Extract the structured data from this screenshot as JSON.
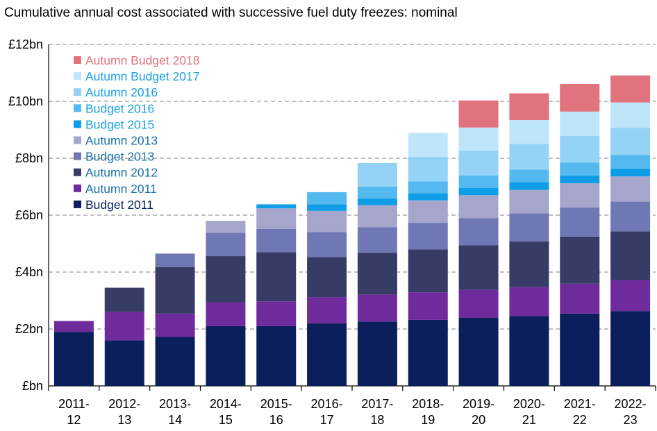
{
  "title": "Cumulative annual  cost associated with successive fuel duty freezes: nominal",
  "chart_data": {
    "type": "bar",
    "stacked": true,
    "title": "Cumulative annual  cost associated with successive fuel duty freezes: nominal",
    "xlabel": "",
    "ylabel": "",
    "ylim": [
      0,
      12
    ],
    "yticks": [
      "£bn",
      "£2bn",
      "£4bn",
      "£6bn",
      "£8bn",
      "£10bn",
      "£12bn"
    ],
    "grid": "horizontal dashed",
    "legend_position": "top-left",
    "categories": [
      [
        "2011-",
        "12"
      ],
      [
        "2012-",
        "13"
      ],
      [
        "2013-",
        "14"
      ],
      [
        "2014-",
        "15"
      ],
      [
        "2015-",
        "16"
      ],
      [
        "2016-",
        "17"
      ],
      [
        "2017-",
        "18"
      ],
      [
        "2018-",
        "19"
      ],
      [
        "2019-",
        "20"
      ],
      [
        "2020-",
        "21"
      ],
      [
        "2021-",
        "22"
      ],
      [
        "2022-",
        "23"
      ]
    ],
    "series": [
      {
        "name": "Budget 2011",
        "color": "#0a1f5c",
        "legend_text_color": "#0a1f5c",
        "values": [
          1.9,
          1.6,
          1.72,
          2.1,
          2.1,
          2.2,
          2.26,
          2.32,
          2.4,
          2.46,
          2.54,
          2.63
        ]
      },
      {
        "name": "Autumn 2011",
        "color": "#6f2b9c",
        "legend_text_color": "#1a6fa8",
        "values": [
          0.38,
          1.0,
          0.82,
          0.84,
          0.87,
          0.92,
          0.95,
          0.97,
          0.98,
          1.01,
          1.05,
          1.09
        ]
      },
      {
        "name": "Autumn 2012",
        "color": "#373c66",
        "legend_text_color": "#1a6fa8",
        "values": [
          0,
          0.85,
          1.63,
          1.62,
          1.73,
          1.41,
          1.47,
          1.51,
          1.56,
          1.61,
          1.66,
          1.71
        ]
      },
      {
        "name": "Budget 2013",
        "color": "#6f78b4",
        "legend_text_color": "#1a6fa8",
        "values": [
          0,
          0,
          0.48,
          0.82,
          0.82,
          0.88,
          0.9,
          0.93,
          0.95,
          0.98,
          1.02,
          1.05
        ]
      },
      {
        "name": "Autumn 2013",
        "color": "#a6a6cc",
        "legend_text_color": "#1a6fa8",
        "values": [
          0,
          0,
          0,
          0.42,
          0.72,
          0.74,
          0.77,
          0.79,
          0.81,
          0.83,
          0.85,
          0.88
        ]
      },
      {
        "name": "Budget 2015",
        "color": "#0f9de8",
        "legend_text_color": "#1aa0e0",
        "values": [
          0,
          0,
          0,
          0,
          0.14,
          0.23,
          0.24,
          0.25,
          0.26,
          0.27,
          0.27,
          0.28
        ]
      },
      {
        "name": "Budget 2016",
        "color": "#54b9ee",
        "legend_text_color": "#1aa0e0",
        "values": [
          0,
          0,
          0,
          0,
          0,
          0.43,
          0.41,
          0.42,
          0.43,
          0.44,
          0.46,
          0.47
        ]
      },
      {
        "name": "Autumn 2016",
        "color": "#94d2f6",
        "legend_text_color": "#1aa0e0",
        "values": [
          0,
          0,
          0,
          0,
          0,
          0,
          0.83,
          0.86,
          0.88,
          0.9,
          0.93,
          0.96
        ]
      },
      {
        "name": "Autumn Budget 2017",
        "color": "#bfe5fb",
        "legend_text_color": "#1aa0e0",
        "values": [
          0,
          0,
          0,
          0,
          0,
          0,
          0,
          0.84,
          0.81,
          0.84,
          0.86,
          0.89
        ]
      },
      {
        "name": "Autumn Budget 2018",
        "color": "#e0737d",
        "legend_text_color": "#e0737d",
        "values": [
          0,
          0,
          0,
          0,
          0,
          0,
          0,
          0,
          0.95,
          0.94,
          0.97,
          0.95
        ]
      }
    ]
  }
}
